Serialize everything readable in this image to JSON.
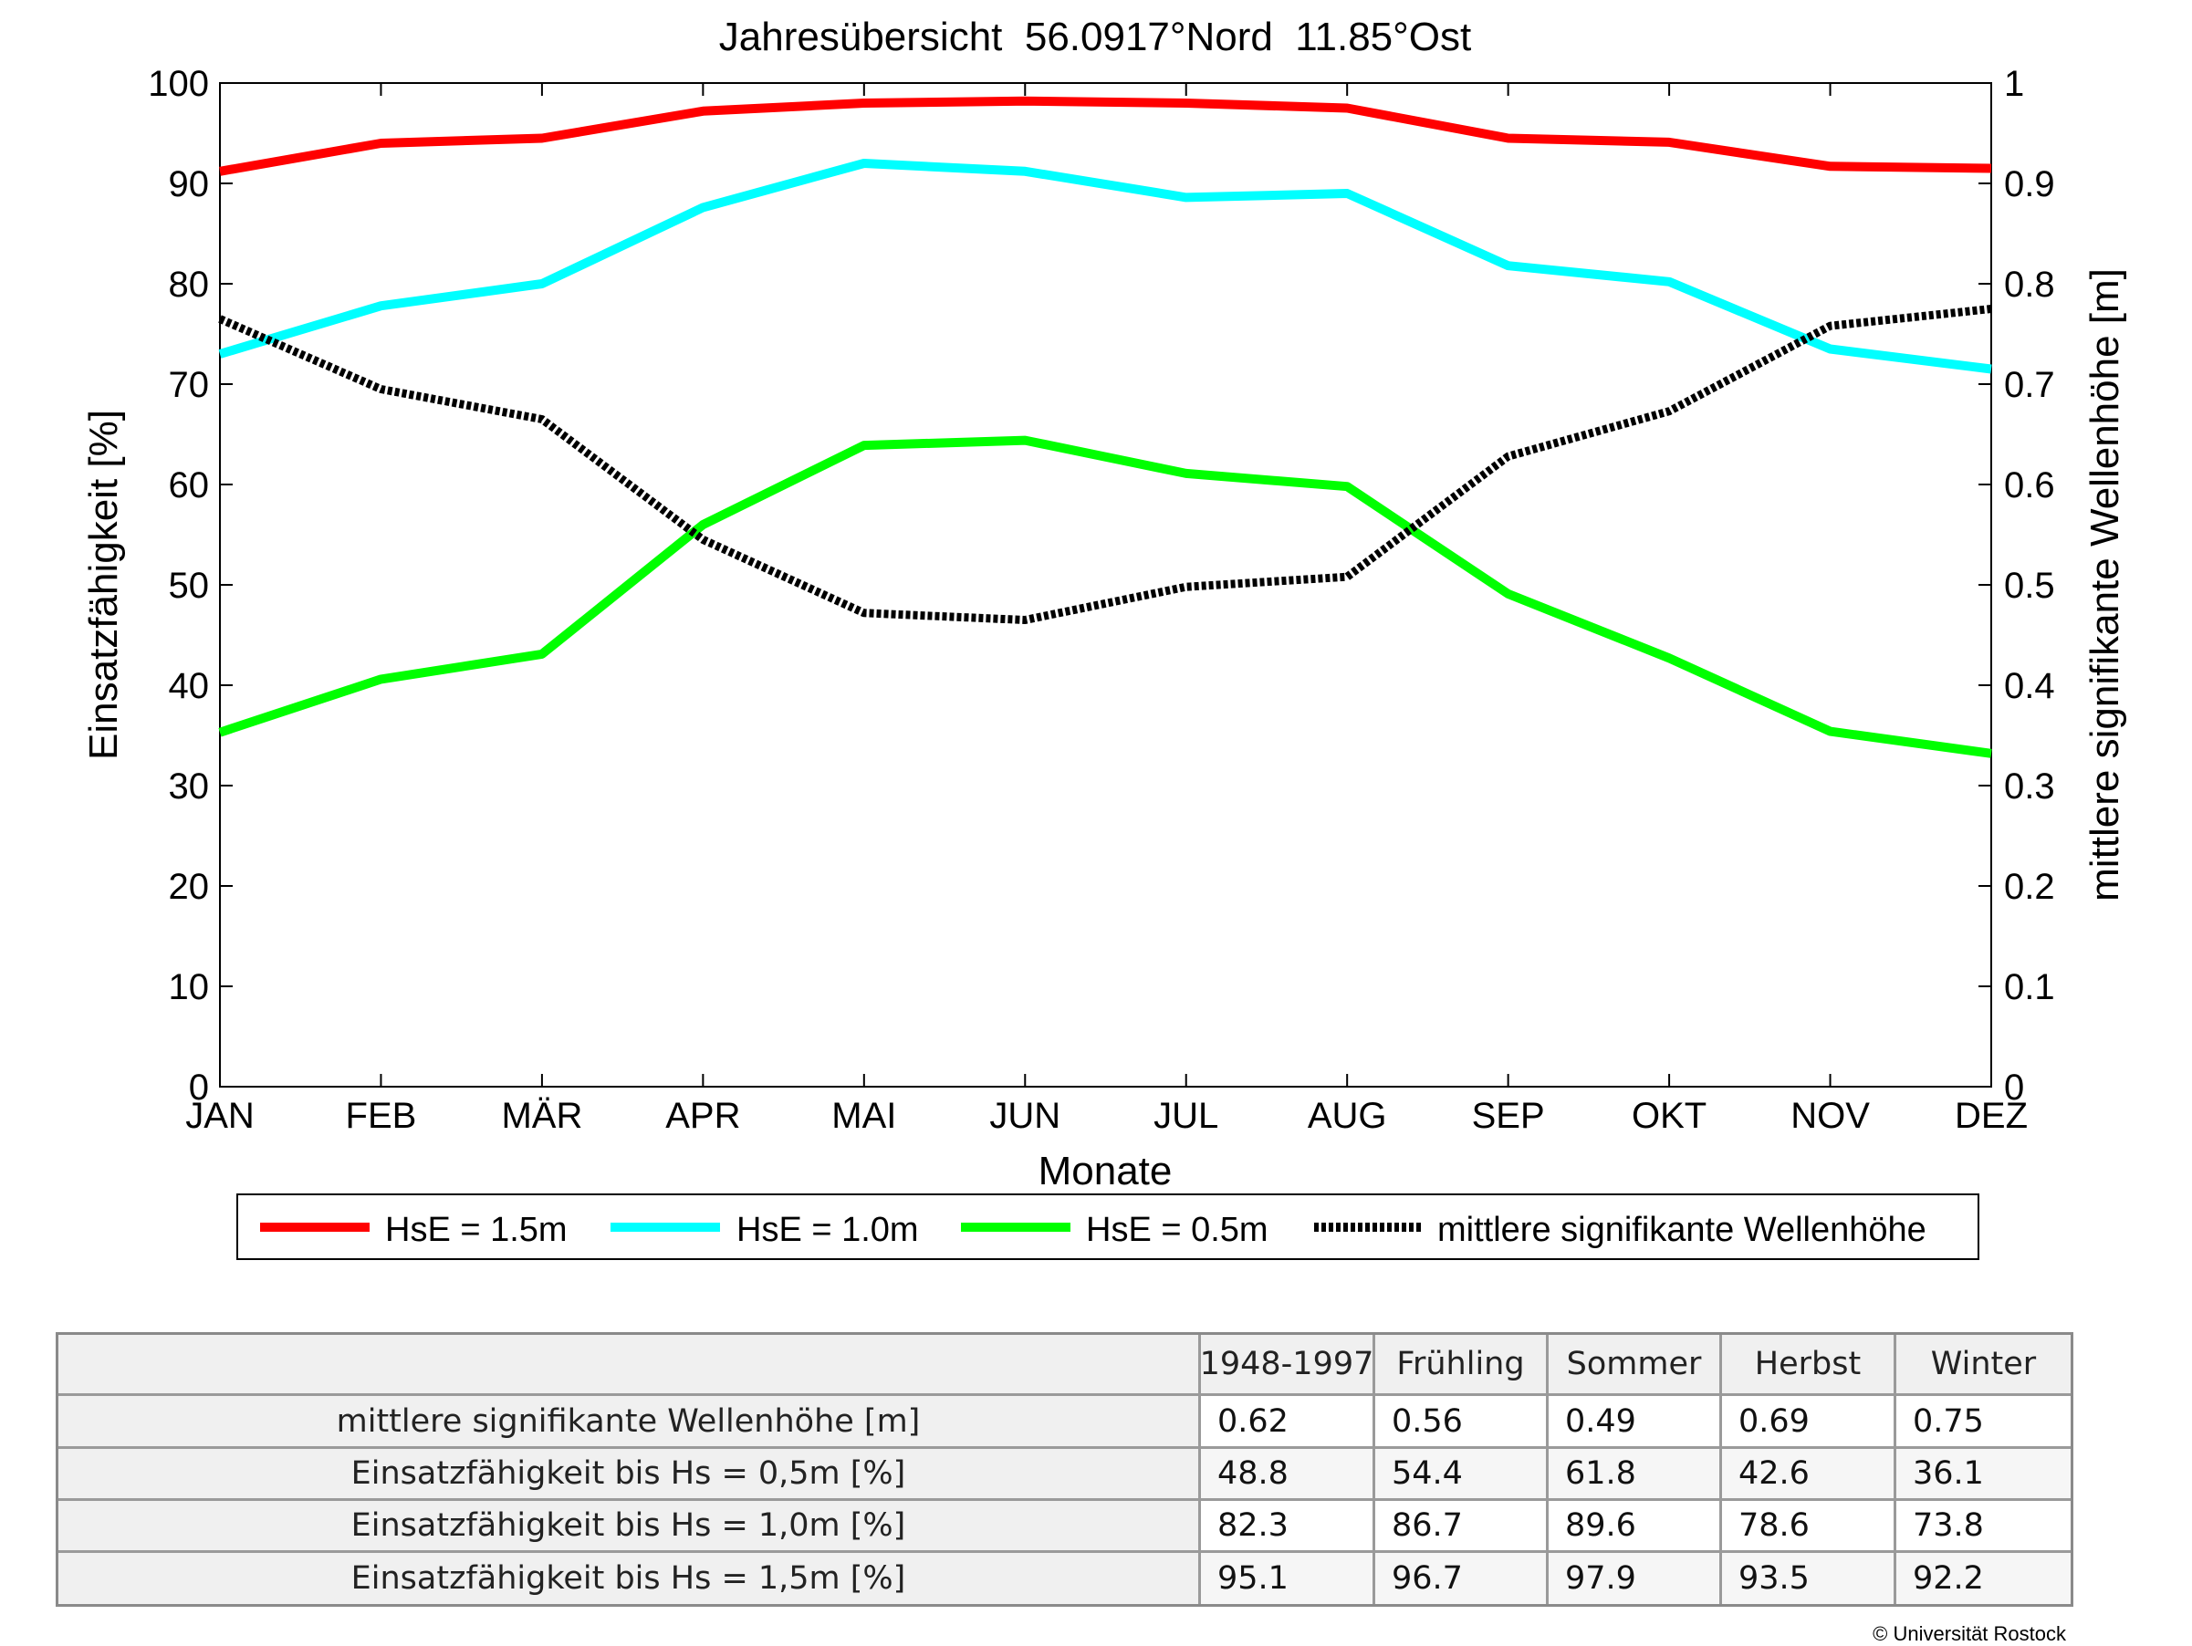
{
  "chart_data": {
    "type": "line",
    "title": "Jahresübersicht  56.0917°Nord  11.85°Ost",
    "xlabel": "Monate",
    "ylabel_left": "Einsatzfähigkeit [%]",
    "ylabel_right": "mittlere signifikante Wellenhöhe [m]",
    "categories": [
      "JAN",
      "FEB",
      "MÄR",
      "APR",
      "MAI",
      "JUN",
      "JUL",
      "AUG",
      "SEP",
      "OKT",
      "NOV",
      "DEZ"
    ],
    "ylim_left": [
      0,
      100
    ],
    "ylim_right": [
      0,
      1
    ],
    "yticks_left": [
      "0",
      "10",
      "20",
      "30",
      "40",
      "50",
      "60",
      "70",
      "80",
      "90",
      "100"
    ],
    "yticks_right": [
      "0",
      "0.1",
      "0.2",
      "0.3",
      "0.4",
      "0.5",
      "0.6",
      "0.7",
      "0.8",
      "0.9",
      "1"
    ],
    "grid": false,
    "legend_position": "bottom",
    "series": [
      {
        "name": "HsE = 1.5m",
        "axis": "left",
        "color": "#ff0000",
        "style": "solid",
        "values": [
          91.2,
          94.0,
          94.5,
          97.2,
          98.0,
          98.2,
          98.0,
          97.5,
          94.5,
          94.1,
          91.7,
          91.5
        ]
      },
      {
        "name": "HsE = 1.0m",
        "axis": "left",
        "color": "#00ffff",
        "style": "solid",
        "values": [
          73.0,
          77.8,
          80.0,
          87.6,
          92.0,
          91.2,
          88.6,
          89.0,
          81.8,
          80.2,
          73.5,
          71.5
        ]
      },
      {
        "name": "HsE = 0.5m",
        "axis": "left",
        "color": "#00ff00",
        "style": "solid",
        "values": [
          35.3,
          40.6,
          43.1,
          56.0,
          63.9,
          64.4,
          61.1,
          59.8,
          49.1,
          42.7,
          35.4,
          33.2
        ]
      },
      {
        "name": "mittlere signifikante Wellenhöhe",
        "axis": "right",
        "color": "#000000",
        "style": "dotted",
        "values": [
          0.765,
          0.695,
          0.665,
          0.545,
          0.472,
          0.465,
          0.498,
          0.508,
          0.628,
          0.673,
          0.758,
          0.775
        ]
      }
    ]
  },
  "table": {
    "headers": [
      "",
      "1948-1997",
      "Frühling",
      "Sommer",
      "Herbst",
      "Winter"
    ],
    "rows": [
      {
        "label": "mittlere signifikante Wellenhöhe [m]",
        "values": [
          "0.62",
          "0.56",
          "0.49",
          "0.69",
          "0.75"
        ]
      },
      {
        "label": "Einsatzfähigkeit bis Hs = 0,5m [%]",
        "values": [
          "48.8",
          "54.4",
          "61.8",
          "42.6",
          "36.1"
        ]
      },
      {
        "label": "Einsatzfähigkeit bis Hs = 1,0m [%]",
        "values": [
          "82.3",
          "86.7",
          "89.6",
          "78.6",
          "73.8"
        ]
      },
      {
        "label": "Einsatzfähigkeit bis Hs = 1,5m [%]",
        "values": [
          "95.1",
          "96.7",
          "97.9",
          "93.5",
          "92.2"
        ]
      }
    ]
  },
  "copyright": "© Universität Rostock"
}
